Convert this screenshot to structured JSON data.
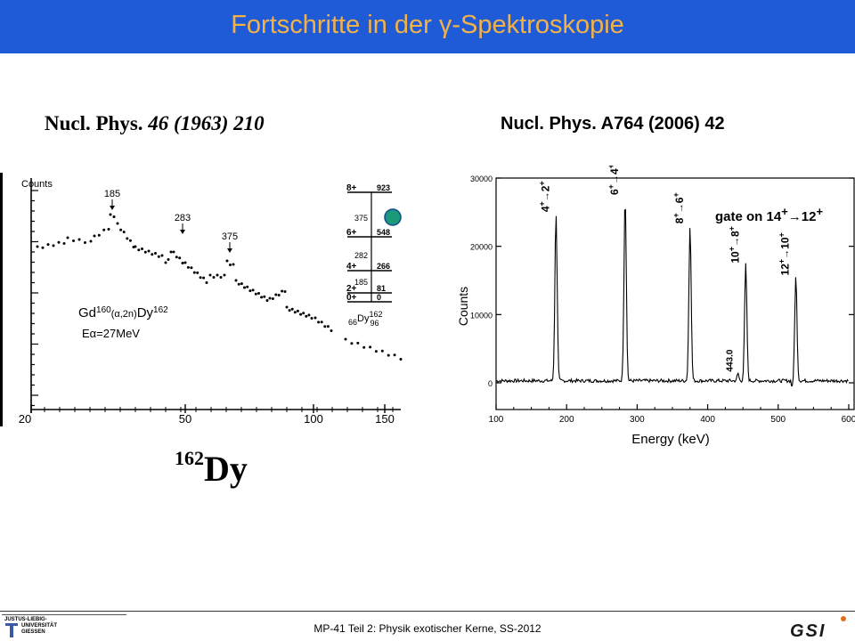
{
  "slide": {
    "title_prefix": "Fortschritte in der ",
    "title_symbol": "γ",
    "title_suffix": "-Spektroskopie",
    "ref_left_main": "Nucl. Phys. ",
    "ref_left_italic": "46 (1963) 210",
    "ref_right": "Nucl. Phys. A764 (2006) 42",
    "isotope_mass": "162",
    "isotope_symbol": "Dy",
    "footer": "MP-41 Teil 2: Physik exotischer Kerne, SS-2012",
    "logo_left_lines": [
      "JUSTUS-LIEBIG-",
      "UNIVERSITÄT",
      "GIESSEN"
    ],
    "logo_right_text": "GSI",
    "colors": {
      "header": "#1f5bd6",
      "title": "#f2b24a",
      "marker": "#1a9a7a"
    }
  },
  "chart_data": [
    {
      "type": "scatter",
      "ylabel": "Counts",
      "x_ticks": [
        "20",
        "50",
        "100",
        "150"
      ],
      "peak_labels": [
        "185",
        "283",
        "375"
      ],
      "reaction_text": [
        "Gd",
        "160",
        "(α,2n)",
        "Dy",
        "162"
      ],
      "energy_text": "Eα=27MeV",
      "level_scheme": {
        "levels": [
          {
            "spin": "8+",
            "energy": "923"
          },
          {
            "spin": "6+",
            "energy": "548"
          },
          {
            "spin": "4+",
            "energy": "266"
          },
          {
            "spin": "2+",
            "energy": "81"
          },
          {
            "spin": "0+",
            "energy": "0"
          }
        ],
        "transitions": [
          "375",
          "282",
          "185"
        ],
        "nucleus": [
          "66",
          "Dy",
          "162",
          "96"
        ]
      }
    },
    {
      "type": "line",
      "xlabel": "Energy (keV)",
      "ylabel": "Counts",
      "xlim": [
        100,
        600
      ],
      "ylim": [
        0,
        30000
      ],
      "x_ticks": [
        "100",
        "200",
        "300",
        "400",
        "500",
        "600"
      ],
      "y_ticks": [
        "0",
        "10000",
        "20000",
        "30000"
      ],
      "gate_label": [
        "gate on 14",
        "+",
        "→12",
        "+"
      ],
      "peaks": [
        {
          "energy": 185,
          "counts": 24500,
          "label": [
            "4",
            "+",
            "→",
            "2",
            "+"
          ]
        },
        {
          "energy": 283,
          "counts": 27000,
          "label": [
            "6",
            "+",
            "→",
            "4",
            "+"
          ]
        },
        {
          "energy": 375,
          "counts": 22800,
          "label": [
            "8",
            "+",
            "→",
            "6",
            "+"
          ]
        },
        {
          "energy": 443,
          "counts": 1100,
          "label": [
            "443.0"
          ]
        },
        {
          "energy": 454,
          "counts": 17000,
          "label": [
            "10",
            "+",
            "→",
            "8",
            "+"
          ]
        },
        {
          "energy": 525,
          "counts": 15200,
          "label": [
            "12",
            "+",
            "→",
            "10",
            "+"
          ]
        }
      ]
    }
  ]
}
